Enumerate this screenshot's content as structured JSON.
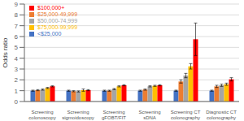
{
  "chart_data": {
    "type": "bar",
    "categories": [
      "Screening\ncolonoscopy",
      "Screening\nsigmoidoscopy",
      "Screening\ngFOBT/FIT",
      "Screening\nsDNA",
      "Screening CT\ncolonography",
      "Diagnostic CT\ncolonography"
    ],
    "series": [
      {
        "name": "<$25,000",
        "color": "#4472C4",
        "values": [
          1.0,
          1.0,
          1.0,
          1.0,
          1.0,
          1.0
        ],
        "errors": [
          0.05,
          0.05,
          0.05,
          0.05,
          0.05,
          0.05
        ]
      },
      {
        "name": "$25,000-49,999",
        "color": "#ED7D31",
        "values": [
          1.05,
          0.95,
          1.0,
          1.1,
          1.85,
          1.4
        ],
        "errors": [
          0.05,
          0.05,
          0.05,
          0.05,
          0.15,
          0.1
        ]
      },
      {
        "name": "$50,000-74,999",
        "color": "#A5A5A5",
        "values": [
          1.1,
          0.93,
          1.15,
          1.4,
          2.4,
          1.5
        ],
        "errors": [
          0.05,
          0.05,
          0.05,
          0.05,
          0.2,
          0.1
        ]
      },
      {
        "name": "$75,000-99,999",
        "color": "#FFC000",
        "values": [
          1.25,
          1.05,
          1.4,
          1.45,
          3.25,
          1.6
        ],
        "errors": [
          0.05,
          0.1,
          0.05,
          0.05,
          0.25,
          0.1
        ]
      },
      {
        "name": "$100,000+",
        "color": "#FF0000",
        "values": [
          1.4,
          1.05,
          1.5,
          1.5,
          5.75,
          2.05
        ],
        "errors": [
          0.05,
          0.05,
          0.05,
          0.05,
          1.5,
          0.15
        ]
      }
    ],
    "ylabel": "Odds ratio",
    "ylim": [
      0,
      9
    ],
    "yticks": [
      0,
      1,
      2,
      3,
      4,
      5,
      6,
      7,
      8,
      9
    ],
    "grid": true,
    "legend": "upper left"
  }
}
